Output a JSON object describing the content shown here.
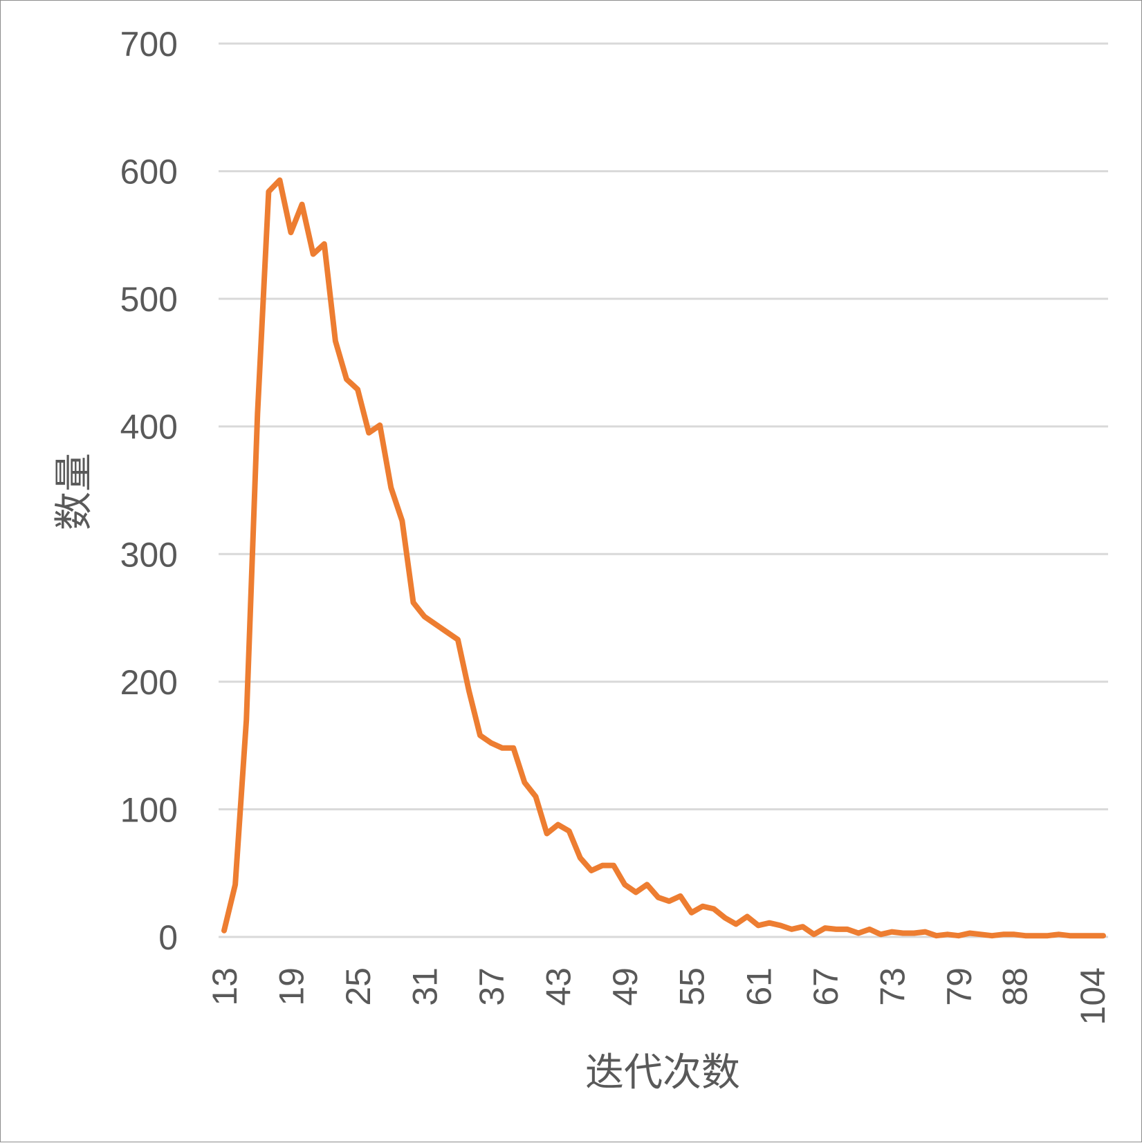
{
  "chart_data": {
    "type": "line",
    "title": "",
    "xlabel": "迭代次数",
    "ylabel": "数量",
    "ylim": [
      0,
      700
    ],
    "yticks": [
      0,
      100,
      200,
      300,
      400,
      500,
      600,
      700
    ],
    "grid": true,
    "legend": "none",
    "x_tick_labels": [
      "13",
      "19",
      "25",
      "31",
      "37",
      "43",
      "49",
      "55",
      "61",
      "67",
      "73",
      "79",
      "88",
      "104"
    ],
    "x": [
      13,
      14,
      15,
      16,
      17,
      18,
      19,
      20,
      21,
      22,
      23,
      24,
      25,
      26,
      27,
      28,
      29,
      30,
      31,
      32,
      33,
      34,
      35,
      36,
      37,
      38,
      39,
      40,
      41,
      42,
      43,
      44,
      45,
      46,
      47,
      48,
      49,
      50,
      51,
      52,
      53,
      54,
      55,
      56,
      57,
      58,
      59,
      60,
      61,
      62,
      63,
      64,
      65,
      66,
      67,
      68,
      69,
      70,
      71,
      72,
      73,
      74,
      75,
      76,
      77,
      78,
      79,
      80,
      81,
      82,
      85,
      88,
      89,
      91,
      95,
      97,
      99,
      101,
      104,
      107
    ],
    "series": [
      {
        "color": "#ED7D31",
        "values": [
          5,
          41,
          170,
          410,
          584,
          593,
          552,
          574,
          535,
          543,
          467,
          437,
          429,
          395,
          401,
          352,
          326,
          262,
          251,
          245,
          239,
          233,
          193,
          158,
          152,
          148,
          148,
          121,
          110,
          81,
          88,
          83,
          62,
          52,
          56,
          56,
          41,
          35,
          41,
          31,
          28,
          32,
          19,
          24,
          22,
          15,
          10,
          16,
          9,
          11,
          9,
          6,
          8,
          2,
          7,
          6,
          6,
          3,
          6,
          2,
          4,
          3,
          3,
          4,
          1,
          2,
          1,
          3,
          2,
          1,
          2,
          2,
          1,
          1,
          1,
          2,
          1,
          1,
          1,
          1
        ]
      }
    ]
  }
}
